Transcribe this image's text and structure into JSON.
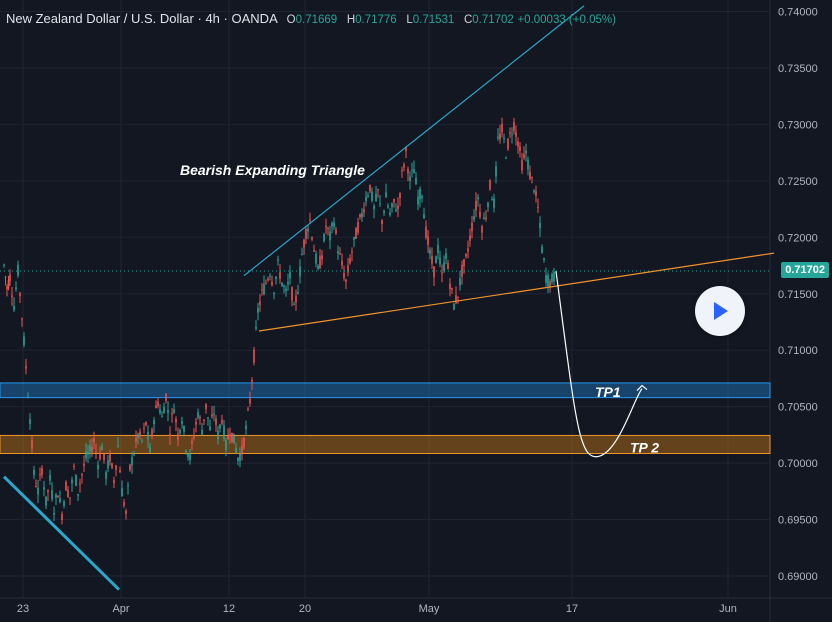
{
  "header": {
    "symbol": "New Zealand Dollar / U.S. Dollar",
    "sep1": "·",
    "interval": "4h",
    "sep2": "·",
    "source": "OANDA",
    "o_label": "O",
    "o_value": "0.71669",
    "h_label": "H",
    "h_value": "0.71776",
    "l_label": "L",
    "l_value": "0.71531",
    "c_label": "C",
    "c_value": "0.71702",
    "change": "+0.00033 (+0.05%)"
  },
  "last_price_tag": "0.71702",
  "colors": {
    "background": "#131722",
    "grid": "#1f2433",
    "axis_text": "#b2b5be",
    "up": "#26a69a",
    "down": "#ef5350",
    "trendline_upper": "#2aa7c9",
    "trendline_lower": "#f0932b",
    "tp1_fill": "rgba(33,150,243,0.35)",
    "tp1_border": "#2196f3",
    "tp2_fill": "rgba(200,120,20,0.45)",
    "tp2_border": "#f0932b",
    "projection": "#ffffff",
    "play_icon": "#2962ff"
  },
  "icons": {
    "play": "play-icon"
  },
  "chart_data": {
    "type": "candlestick",
    "symbol": "NZDUSD",
    "interval": "4h",
    "ylim": [
      0.6885,
      0.7402
    ],
    "y_ticks": [
      "0.74000",
      "0.73500",
      "0.73000",
      "0.72500",
      "0.72000",
      "0.71500",
      "0.71000",
      "0.70500",
      "0.70000",
      "0.69500",
      "0.69000"
    ],
    "x_ticks": [
      "23",
      "Apr",
      "12",
      "20",
      "May",
      "17",
      "Jun"
    ],
    "last_price": 0.71702,
    "price_path": [
      [
        0,
        0.7175
      ],
      [
        3,
        0.7155
      ],
      [
        6,
        0.7165
      ],
      [
        10,
        0.714
      ],
      [
        14,
        0.717
      ],
      [
        18,
        0.713
      ],
      [
        22,
        0.7085
      ],
      [
        26,
        0.704
      ],
      [
        30,
        0.699
      ],
      [
        34,
        0.6975
      ],
      [
        38,
        0.6995
      ],
      [
        42,
        0.6965
      ],
      [
        46,
        0.6985
      ],
      [
        50,
        0.696
      ],
      [
        54,
        0.6975
      ],
      [
        58,
        0.6955
      ],
      [
        62,
        0.698
      ],
      [
        66,
        0.697
      ],
      [
        70,
        0.6995
      ],
      [
        74,
        0.6975
      ],
      [
        78,
        0.699
      ],
      [
        82,
        0.7005
      ],
      [
        86,
        0.701
      ],
      [
        90,
        0.702
      ],
      [
        94,
        0.7
      ],
      [
        98,
        0.7015
      ],
      [
        102,
        0.699
      ],
      [
        106,
        0.7005
      ],
      [
        110,
        0.6985
      ],
      [
        114,
        0.7015
      ],
      [
        118,
        0.6975
      ],
      [
        122,
        0.6955
      ],
      [
        126,
        0.6995
      ],
      [
        130,
        0.701
      ],
      [
        134,
        0.7025
      ],
      [
        138,
        0.702
      ],
      [
        142,
        0.7035
      ],
      [
        146,
        0.701
      ],
      [
        150,
        0.704
      ],
      [
        154,
        0.7055
      ],
      [
        158,
        0.704
      ],
      [
        162,
        0.706
      ],
      [
        166,
        0.703
      ],
      [
        170,
        0.705
      ],
      [
        174,
        0.7025
      ],
      [
        178,
        0.704
      ],
      [
        182,
        0.7015
      ],
      [
        186,
        0.7005
      ],
      [
        190,
        0.7025
      ],
      [
        194,
        0.7045
      ],
      [
        198,
        0.703
      ],
      [
        202,
        0.705
      ],
      [
        206,
        0.703
      ],
      [
        210,
        0.7045
      ],
      [
        214,
        0.7025
      ],
      [
        218,
        0.704
      ],
      [
        222,
        0.7015
      ],
      [
        226,
        0.703
      ],
      [
        230,
        0.702
      ],
      [
        234,
        0.7005
      ],
      [
        238,
        0.701
      ],
      [
        242,
        0.703
      ],
      [
        246,
        0.7055
      ],
      [
        250,
        0.7095
      ],
      [
        254,
        0.7135
      ],
      [
        258,
        0.715
      ],
      [
        262,
        0.716
      ],
      [
        266,
        0.717
      ],
      [
        270,
        0.7155
      ],
      [
        274,
        0.7175
      ],
      [
        278,
        0.716
      ],
      [
        282,
        0.715
      ],
      [
        286,
        0.7165
      ],
      [
        290,
        0.7135
      ],
      [
        294,
        0.7155
      ],
      [
        298,
        0.7185
      ],
      [
        302,
        0.7205
      ],
      [
        306,
        0.7215
      ],
      [
        310,
        0.719
      ],
      [
        314,
        0.717
      ],
      [
        318,
        0.7185
      ],
      [
        322,
        0.721
      ],
      [
        326,
        0.72
      ],
      [
        330,
        0.7215
      ],
      [
        334,
        0.719
      ],
      [
        338,
        0.7175
      ],
      [
        342,
        0.716
      ],
      [
        346,
        0.718
      ],
      [
        350,
        0.7195
      ],
      [
        354,
        0.721
      ],
      [
        358,
        0.722
      ],
      [
        362,
        0.7235
      ],
      [
        366,
        0.7245
      ],
      [
        370,
        0.7225
      ],
      [
        374,
        0.724
      ],
      [
        378,
        0.7215
      ],
      [
        382,
        0.7235
      ],
      [
        386,
        0.722
      ],
      [
        390,
        0.723
      ],
      [
        394,
        0.7225
      ],
      [
        398,
        0.7255
      ],
      [
        402,
        0.7275
      ],
      [
        406,
        0.725
      ],
      [
        410,
        0.726
      ],
      [
        414,
        0.7235
      ],
      [
        418,
        0.724
      ],
      [
        422,
        0.7205
      ],
      [
        426,
        0.7185
      ],
      [
        430,
        0.717
      ],
      [
        434,
        0.719
      ],
      [
        438,
        0.7165
      ],
      [
        442,
        0.7185
      ],
      [
        446,
        0.716
      ],
      [
        450,
        0.714
      ],
      [
        454,
        0.715
      ],
      [
        458,
        0.717
      ],
      [
        462,
        0.718
      ],
      [
        466,
        0.72
      ],
      [
        470,
        0.722
      ],
      [
        474,
        0.7235
      ],
      [
        478,
        0.721
      ],
      [
        482,
        0.722
      ],
      [
        486,
        0.7245
      ],
      [
        490,
        0.723
      ],
      [
        494,
        0.7285
      ],
      [
        498,
        0.7295
      ],
      [
        502,
        0.7275
      ],
      [
        506,
        0.729
      ],
      [
        510,
        0.73
      ],
      [
        514,
        0.7285
      ],
      [
        518,
        0.7265
      ],
      [
        522,
        0.7275
      ],
      [
        526,
        0.7255
      ],
      [
        530,
        0.7245
      ],
      [
        534,
        0.7225
      ],
      [
        538,
        0.719
      ],
      [
        542,
        0.7165
      ],
      [
        546,
        0.716
      ],
      [
        550,
        0.7165
      ],
      [
        552,
        0.717
      ]
    ],
    "annotations": [
      {
        "type": "text",
        "text": "Bearish Expanding Triangle",
        "x": "2021-04-14",
        "y": 0.7256
      },
      {
        "type": "trendline",
        "name": "upper",
        "from": {
          "t": 240,
          "y": 0.7166
        },
        "to": {
          "t": 580,
          "y": 0.7405
        }
      },
      {
        "type": "trendline",
        "name": "lower",
        "from": {
          "t": 255,
          "y": 0.7117
        },
        "to": {
          "t": 770,
          "y": 0.7186
        }
      },
      {
        "type": "trendline",
        "name": "long-term",
        "from": {
          "t": 0,
          "y": 0.6988
        },
        "to": {
          "t": 115,
          "y": 0.6888
        }
      },
      {
        "type": "zone",
        "label": "TP1",
        "from": 0.7058,
        "to": 0.7071
      },
      {
        "type": "zone",
        "label": "TP 2",
        "from": 0.70085,
        "to": 0.70245
      },
      {
        "type": "projection",
        "points": [
          [
            552,
            0.717
          ],
          [
            575,
            0.7035
          ],
          [
            595,
            0.7006
          ],
          [
            620,
            0.7025
          ],
          [
            638,
            0.7066
          ]
        ]
      }
    ]
  }
}
